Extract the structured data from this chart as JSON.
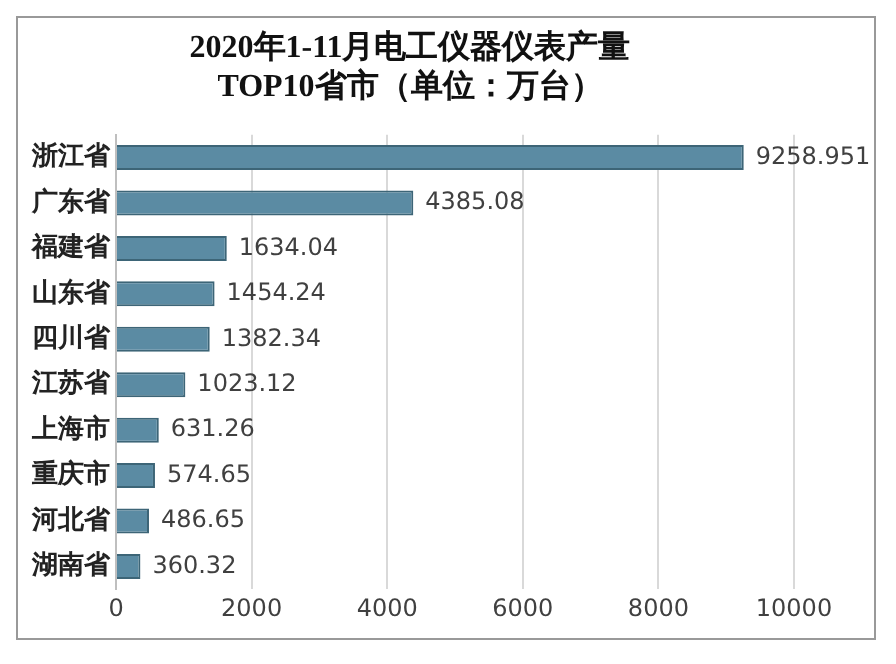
{
  "chart_data": {
    "type": "bar",
    "orientation": "horizontal",
    "title": "2020年1-11月电工仪器仪表产量\nTOP10省市（单位：万台）",
    "categories": [
      "浙江省",
      "广东省",
      "福建省",
      "山东省",
      "四川省",
      "江苏省",
      "上海市",
      "重庆市",
      "河北省",
      "湖南省"
    ],
    "values": [
      9258.951,
      4385.08,
      1634.04,
      1454.24,
      1382.34,
      1023.12,
      631.26,
      574.65,
      486.65,
      360.32
    ],
    "color": "#5b8ba3",
    "xlim": [
      0,
      10000
    ],
    "xticks": [
      0,
      2000,
      4000,
      6000,
      8000,
      10000
    ],
    "grid": "x",
    "data_labels": true,
    "legend": false
  }
}
